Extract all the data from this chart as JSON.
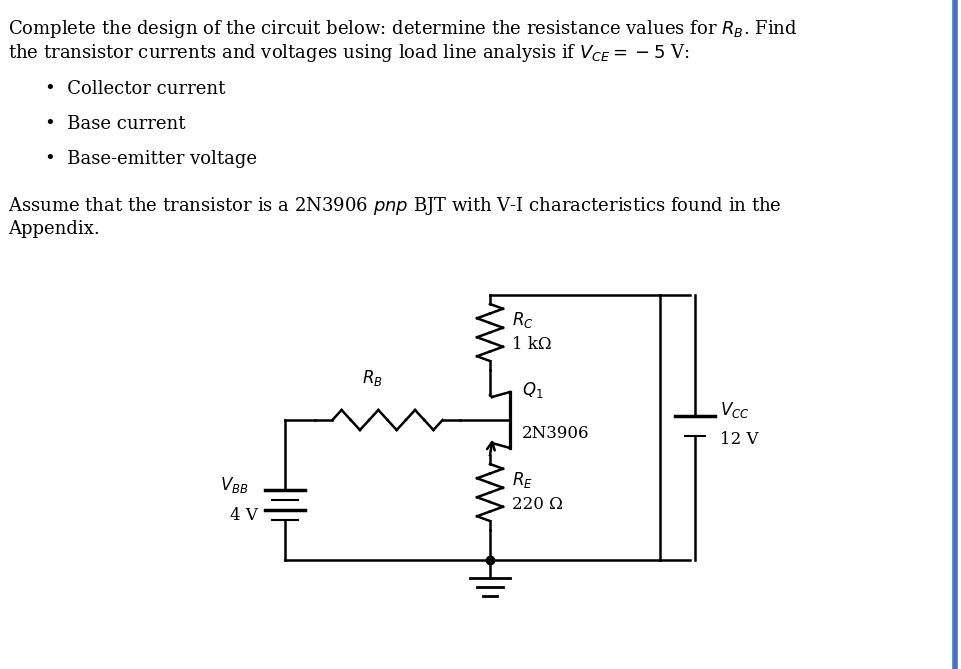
{
  "bg_color": "#ffffff",
  "border_color": "#4472c4",
  "title_line1": "Complete the design of the circuit below: determine the resistance values for $R_B$. Find",
  "title_line2": "the transistor currents and voltages using load line analysis if $V_{CE} = -5$ V:",
  "bullets": [
    "Collector current",
    "Base current",
    "Base-emitter voltage"
  ],
  "assume_line1": "Assume that the transistor is a 2N3906 $pnp$ BJT with V-I characteristics found in the",
  "assume_line2": "Appendix.",
  "text_color": "#000000",
  "font_size_main": 13,
  "circuit": {
    "RC_label": "$R_C$",
    "RC_value": "1 kΩ",
    "RB_label": "$R_B$",
    "RE_label": "$R_E$",
    "RE_value": "220 Ω",
    "Q_label": "$Q_1$",
    "Q_value": "2N3906",
    "VCC_label": "$V_{CC}$",
    "VCC_value": "12 V",
    "VBB_label": "$V_{BB}$",
    "VBB_value": "4 V"
  }
}
